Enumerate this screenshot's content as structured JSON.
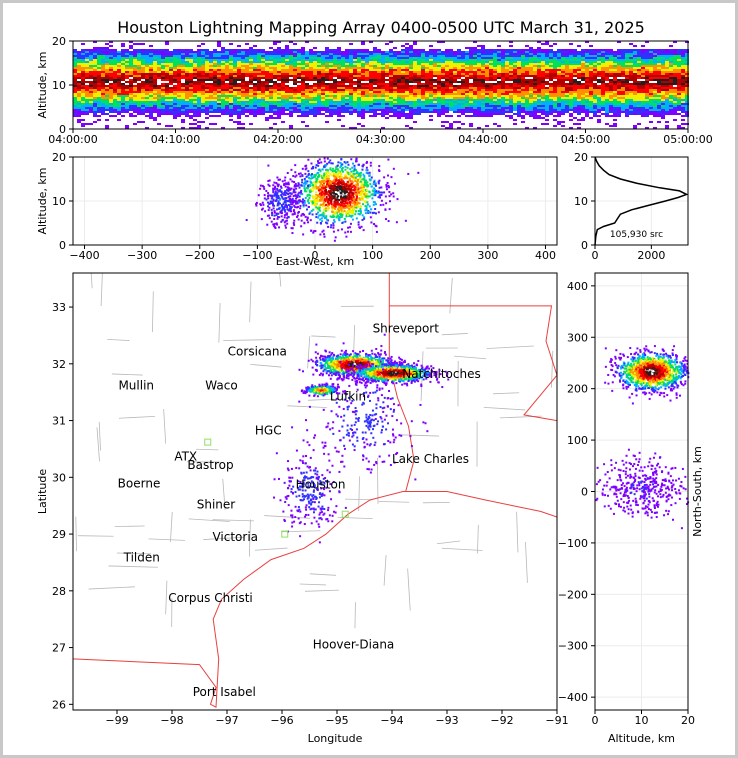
{
  "chart_data": [
    {
      "type": "scatter",
      "panel": "altitude-time",
      "title": "Houston Lightning Mapping Array 0400-0500 UTC March 31, 2025",
      "xlabel": "",
      "ylabel": "Altitude, km",
      "x_ticks": [
        "04:00:00",
        "04:10:00",
        "04:20:00",
        "04:30:00",
        "04:40:00",
        "04:50:00",
        "05:00:00"
      ],
      "ylim": [
        0,
        20
      ],
      "y_ticks": [
        0,
        10,
        20
      ],
      "description_of_density": "continuous band of sources between ~3 and ~18 km, densest near 11 km"
    },
    {
      "type": "scatter",
      "panel": "altitude-eastwest",
      "xlabel": "East-West, km",
      "ylabel": "Altitude, km",
      "xlim": [
        -420,
        420
      ],
      "x_ticks": [
        -400,
        -300,
        -200,
        -100,
        0,
        100,
        200,
        300,
        400
      ],
      "ylim": [
        0,
        20
      ],
      "y_ticks": [
        0,
        10,
        20
      ],
      "clusters": [
        {
          "x_center": 40,
          "x_half_width": 80,
          "y_center": 12,
          "y_half": 8,
          "weight": "dense"
        },
        {
          "x_center": -60,
          "x_half_width": 40,
          "y_center": 10,
          "y_half": 6,
          "weight": "sparse"
        }
      ]
    },
    {
      "type": "line",
      "panel": "altitude-histogram",
      "xlim": [
        0,
        3300
      ],
      "x_ticks": [
        0,
        2000
      ],
      "ylim": [
        0,
        20
      ],
      "y_ticks": [
        0,
        10,
        20
      ],
      "annotation": "105,930 src",
      "points": [
        [
          0,
          0
        ],
        [
          30,
          2
        ],
        [
          80,
          3.5
        ],
        [
          300,
          4.2
        ],
        [
          700,
          5
        ],
        [
          800,
          6
        ],
        [
          900,
          7
        ],
        [
          1300,
          8
        ],
        [
          1900,
          9
        ],
        [
          2500,
          10
        ],
        [
          2950,
          10.8
        ],
        [
          3250,
          11.5
        ],
        [
          3000,
          12.3
        ],
        [
          2300,
          13
        ],
        [
          1500,
          14
        ],
        [
          900,
          15
        ],
        [
          500,
          16
        ],
        [
          300,
          17
        ],
        [
          150,
          18
        ],
        [
          60,
          19
        ],
        [
          0,
          20
        ]
      ]
    },
    {
      "type": "scatter",
      "panel": "plan-view-map",
      "xlabel": "Longitude",
      "ylabel": "Latitude",
      "xlim": [
        -99.8,
        -91
      ],
      "x_ticks": [
        -99,
        -98,
        -97,
        -96,
        -95,
        -94,
        -93,
        -92,
        -91
      ],
      "ylim": [
        25.9,
        33.6
      ],
      "y_ticks": [
        26,
        27,
        28,
        29,
        30,
        31,
        32,
        33
      ],
      "clusters": [
        {
          "lon": -94.7,
          "lat": 32.0,
          "sx": 0.35,
          "sy": 0.1,
          "weight": "dense"
        },
        {
          "lon": -94.0,
          "lat": 31.85,
          "sx": 0.35,
          "sy": 0.08,
          "weight": "dense"
        },
        {
          "lon": -95.3,
          "lat": 31.55,
          "sx": 0.15,
          "sy": 0.05,
          "weight": "medium"
        },
        {
          "lon": -95.5,
          "lat": 29.8,
          "sx": 0.25,
          "sy": 0.35,
          "weight": "sparse"
        },
        {
          "lon": -94.5,
          "lat": 31.0,
          "sx": 0.4,
          "sy": 0.4,
          "weight": "sparse"
        }
      ]
    },
    {
      "type": "scatter",
      "panel": "northsouth-altitude",
      "xlabel": "Altitude, km",
      "ylabel": "North-South, km",
      "xlim": [
        0,
        20
      ],
      "x_ticks": [
        0,
        10,
        20
      ],
      "ylim": [
        -425,
        425
      ],
      "y_ticks": [
        -400,
        -300,
        -200,
        -100,
        0,
        100,
        200,
        300,
        400
      ],
      "clusters": [
        {
          "y_center": 235,
          "y_half": 40,
          "x_center": 12,
          "x_half": 8,
          "weight": "dense"
        },
        {
          "y_center": 10,
          "y_half": 60,
          "x_center": 10,
          "x_half": 10,
          "weight": "sparse"
        }
      ]
    }
  ],
  "map_labels": {
    "cities": [
      {
        "name": "Shreveport",
        "lon": -93.75,
        "lat": 32.55,
        "color": "#000000"
      },
      {
        "name": "Corsicana",
        "lon": -96.45,
        "lat": 32.15,
        "color": "#000000"
      },
      {
        "name": "Mullin",
        "lon": -98.65,
        "lat": 31.55,
        "color": "#f08050"
      },
      {
        "name": "Waco",
        "lon": -97.1,
        "lat": 31.55,
        "color": "#000000"
      },
      {
        "name": "Natchitoches",
        "lon": -93.1,
        "lat": 31.75,
        "color": "#000000"
      },
      {
        "name": "Lufkin",
        "lon": -94.8,
        "lat": 31.35,
        "color": "#000000"
      },
      {
        "name": "HGC",
        "lon": -96.25,
        "lat": 30.75,
        "color": "#000000"
      },
      {
        "name": "ATX",
        "lon": -97.75,
        "lat": 30.3,
        "color": "#f08050"
      },
      {
        "name": "Bastrop",
        "lon": -97.3,
        "lat": 30.15,
        "color": "#000000"
      },
      {
        "name": "Lake Charles",
        "lon": -93.3,
        "lat": 30.25,
        "color": "#000000"
      },
      {
        "name": "Boerne",
        "lon": -98.6,
        "lat": 29.82,
        "color": "#000000"
      },
      {
        "name": "Houston",
        "lon": -95.3,
        "lat": 29.8,
        "color": "#e8a400"
      },
      {
        "name": "Shiner",
        "lon": -97.2,
        "lat": 29.45,
        "color": "#000000"
      },
      {
        "name": "Victoria",
        "lon": -96.85,
        "lat": 28.88,
        "color": "#000000"
      },
      {
        "name": "Tilden",
        "lon": -98.55,
        "lat": 28.52,
        "color": "#000000"
      },
      {
        "name": "Corpus Christi",
        "lon": -97.3,
        "lat": 27.8,
        "color": "#000000"
      },
      {
        "name": "Hoover-Diana",
        "lon": -94.7,
        "lat": 26.98,
        "color": "#1a2cff"
      },
      {
        "name": "Port Isabel",
        "lon": -97.05,
        "lat": 26.15,
        "color": "#000000"
      }
    ]
  },
  "colors": {
    "coast": "#e84040",
    "counties": "#b8b8b8",
    "station": "#8de060",
    "density_scale": [
      "#8000ff",
      "#3030ff",
      "#00b0ff",
      "#00e060",
      "#f0f000",
      "#ff9000",
      "#ff0000",
      "#b00000",
      "#202020",
      "#ffffff"
    ]
  }
}
